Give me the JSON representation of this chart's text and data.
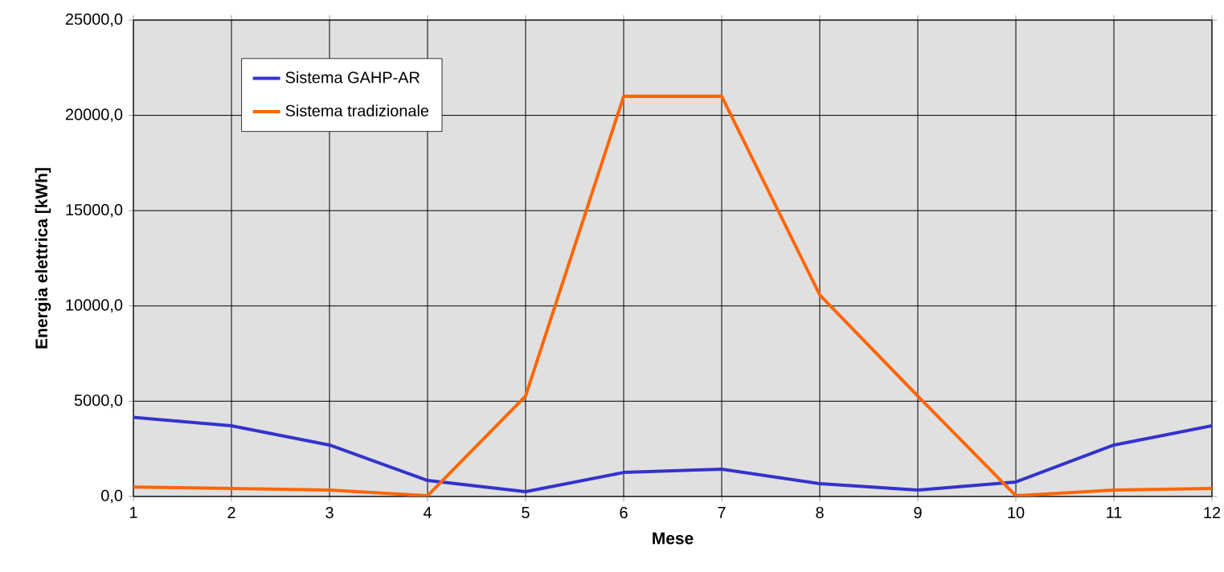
{
  "chart_data": {
    "type": "line",
    "xlabel": "Mese",
    "ylabel": "Energia elettrica [kWh]",
    "x": [
      1,
      2,
      3,
      4,
      5,
      6,
      7,
      8,
      9,
      10,
      11,
      12
    ],
    "series": [
      {
        "name": "Sistema GAHP-AR",
        "color": "#3333cc",
        "values": [
          4150,
          3710,
          2700,
          840,
          250,
          1260,
          1430,
          670,
          340,
          760,
          2700,
          3710
        ]
      },
      {
        "name": "Sistema tradizionale",
        "color": "#ff6600",
        "values": [
          500,
          420,
          340,
          40,
          5270,
          21000,
          21000,
          10580,
          5270,
          40,
          340,
          420
        ]
      }
    ],
    "xlim": [
      1,
      12
    ],
    "xticks": [
      1,
      2,
      3,
      4,
      5,
      6,
      7,
      8,
      9,
      10,
      11,
      12
    ],
    "ylim": [
      0,
      25000
    ],
    "yticks": [
      {
        "value": 0,
        "label": "0,0"
      },
      {
        "value": 5000,
        "label": "5000,0"
      },
      {
        "value": 10000,
        "label": "10000,0"
      },
      {
        "value": 15000,
        "label": "15000,0"
      },
      {
        "value": 20000,
        "label": "20000,0"
      },
      {
        "value": 25000,
        "label": "25000,0"
      }
    ],
    "grid": true,
    "legend": "top left",
    "marker": "none",
    "line_style": "solid"
  }
}
